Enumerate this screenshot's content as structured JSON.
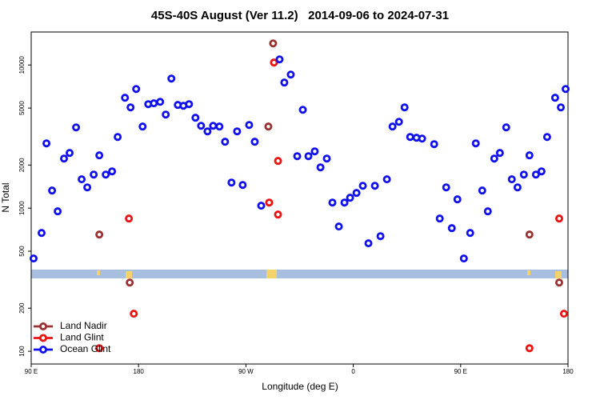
{
  "chart_data": {
    "type": "scatter",
    "title": "45S-40S August (Ver 11.2)   2014-09-06 to 2024-07-31",
    "x_label": "Longitude (deg E)",
    "y_label": "N Total",
    "xlim": [
      90,
      540
    ],
    "xticks": [
      {
        "value": 90,
        "label": "90 E"
      },
      {
        "value": 180,
        "label": "180"
      },
      {
        "value": 270,
        "label": "90 W"
      },
      {
        "value": 360,
        "label": "0"
      },
      {
        "value": 450,
        "label": "90 E"
      },
      {
        "value": 540,
        "label": "180"
      }
    ],
    "ylim": [
      81.5,
      17000
    ],
    "yscale": "log",
    "yticks": [
      100,
      200,
      500,
      1000,
      2000,
      5000,
      10000
    ],
    "legend": "lower left",
    "series": [
      {
        "name": "Land Nadir",
        "color": "#9b3030",
        "x": [
          147.1,
          172.6,
          292.8,
          288.8,
          507.7,
          532.6
        ],
        "values": [
          654,
          302,
          14150,
          3715,
          654,
          302
        ]
      },
      {
        "name": "Land Glint",
        "color": "#ee1111",
        "x": [
          147.1,
          171.9,
          176,
          293.5,
          289.5,
          296.9,
          296.9,
          507.7,
          532.6,
          536.6
        ],
        "values": [
          105,
          846,
          183,
          10400,
          1094,
          2137,
          902,
          105,
          846,
          183
        ]
      },
      {
        "name": "Ocean Glint",
        "color": "#1010ee",
        "x": [
          92,
          98.7,
          102.8,
          107.5,
          112.2,
          117.5,
          122.2,
          127.6,
          132.3,
          137,
          142.4,
          147.1,
          152.5,
          157.8,
          162.5,
          168.6,
          173.3,
          178,
          183.4,
          188.1,
          192.8,
          198.1,
          202.8,
          207.5,
          212.9,
          217.6,
          222.3,
          227.7,
          232.4,
          237.8,
          242.5,
          247.8,
          252.5,
          257.9,
          262.6,
          267.3,
          272.7,
          277.4,
          282.8,
          298.2,
          302.2,
          307.6,
          313,
          317.7,
          322.4,
          327.7,
          332.5,
          337.8,
          342.5,
          347.9,
          352.6,
          357.3,
          362.7,
          368,
          372.7,
          378.1,
          382.8,
          388.2,
          392.9,
          398.3,
          403,
          407.7,
          413,
          417.7,
          427.8,
          432.5,
          437.9,
          442.6,
          447.3,
          452.7,
          458,
          462.7,
          468.1,
          472.8,
          478.2,
          482.9,
          488.2,
          492.9,
          497.7,
          503,
          507.7,
          513.1,
          517.8,
          522.5,
          529.2,
          534,
          538
        ],
        "values": [
          445,
          671,
          2835,
          1327,
          950,
          2220,
          2430,
          3665,
          1590,
          1397,
          1716,
          2338,
          1716,
          1807,
          3142,
          5904,
          5058,
          6796,
          3715,
          5325,
          5400,
          5530,
          4505,
          8035,
          5260,
          5190,
          5325,
          4280,
          3760,
          3438,
          3760,
          3715,
          2910,
          1509,
          3438,
          1452,
          3810,
          2910,
          1040,
          10940,
          7540,
          8570,
          2307,
          4865,
          2307,
          2492,
          1927,
          2220,
          1094,
          744,
          1094,
          1182,
          1277,
          1433,
          568,
          1433,
          637,
          1590,
          3715,
          4010,
          5058,
          3142,
          3103,
          3060,
          2798,
          846,
          1397,
          725,
          1152,
          445,
          671,
          2835,
          1327,
          950,
          2220,
          2430,
          3665,
          1590,
          1397,
          1716,
          2338,
          1716,
          1807,
          3142,
          5904,
          5058,
          6796
        ]
      }
    ]
  }
}
